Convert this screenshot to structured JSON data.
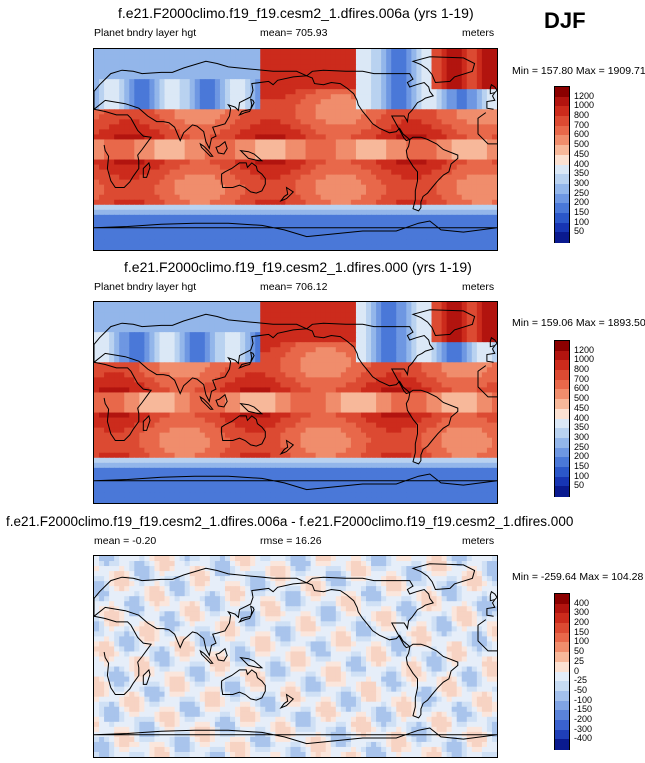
{
  "season_label": "DJF",
  "panels": [
    {
      "title": "f.e21.F2000climo.f19_f19.cesm2_1.dfires.006a (yrs 1-19)",
      "left_label": "Planet bndry layer hgt",
      "center_label": "mean= 705.93",
      "right_label": "meters",
      "minmax": "Min = 157.80 Max = 1909.71",
      "colorbar_labels": [
        "1200",
        "1000",
        "800",
        "700",
        "600",
        "500",
        "450",
        "400",
        "350",
        "300",
        "250",
        "200",
        "150",
        "100",
        "50"
      ],
      "colorbar_colors": [
        "#8b0000",
        "#b2140f",
        "#cc2b1c",
        "#dc4a32",
        "#e8684a",
        "#f08d6c",
        "#f7b89a",
        "#fbe1d2",
        "#dbe8f6",
        "#b9d2f0",
        "#93b6ea",
        "#6e97e2",
        "#4a78d8",
        "#2b57c9",
        "#1735b3",
        "#0a1a8f"
      ],
      "field": "pblh"
    },
    {
      "title": "f.e21.F2000climo.f19_f19.cesm2_1.dfires.000 (yrs 1-19)",
      "left_label": "Planet bndry layer hgt",
      "center_label": "mean= 706.12",
      "right_label": "meters",
      "minmax": "Min = 159.06 Max = 1893.50",
      "colorbar_labels": [
        "1200",
        "1000",
        "800",
        "700",
        "600",
        "500",
        "450",
        "400",
        "350",
        "300",
        "250",
        "200",
        "150",
        "100",
        "50"
      ],
      "colorbar_colors": [
        "#8b0000",
        "#b2140f",
        "#cc2b1c",
        "#dc4a32",
        "#e8684a",
        "#f08d6c",
        "#f7b89a",
        "#fbe1d2",
        "#dbe8f6",
        "#b9d2f0",
        "#93b6ea",
        "#6e97e2",
        "#4a78d8",
        "#2b57c9",
        "#1735b3",
        "#0a1a8f"
      ],
      "field": "pblh"
    },
    {
      "title": "f.e21.F2000climo.f19_f19.cesm2_1.dfires.006a - f.e21.F2000climo.f19_f19.cesm2_1.dfires.000",
      "left_label": "mean =  -0.20",
      "center_label": "rmse =  16.26",
      "right_label": "meters",
      "minmax": "Min = -259.64 Max = 104.28",
      "colorbar_labels": [
        "400",
        "300",
        "200",
        "150",
        "100",
        "50",
        "25",
        "0",
        "-25",
        "-50",
        "-100",
        "-150",
        "-200",
        "-300",
        "-400"
      ],
      "colorbar_colors": [
        "#8b0000",
        "#b2140f",
        "#cc2b1c",
        "#dc4a32",
        "#e8684a",
        "#f08d6c",
        "#f7b89a",
        "#fbe1d2",
        "#e3edf9",
        "#c6dbf3",
        "#a3c0ec",
        "#7fa3e4",
        "#5a83da",
        "#3a62cf",
        "#1f3fb8",
        "#0a1a8f"
      ],
      "field": "diff"
    }
  ]
}
